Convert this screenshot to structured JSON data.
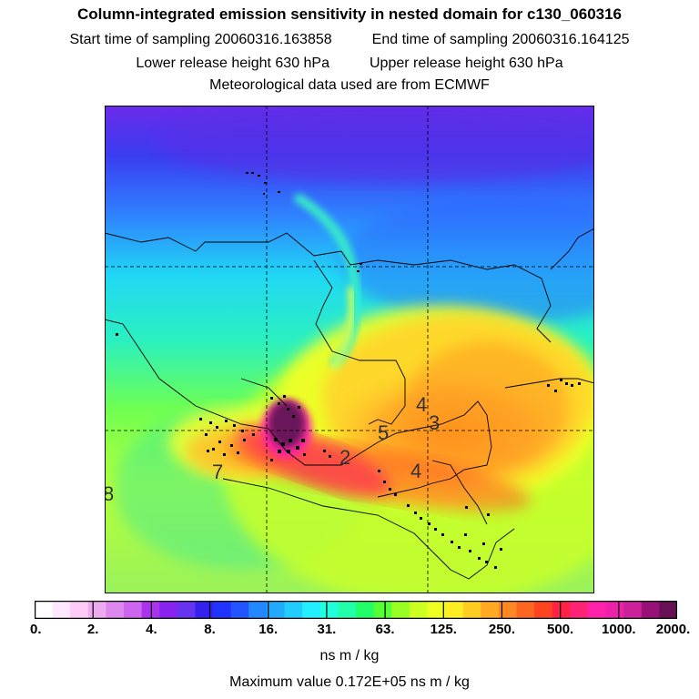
{
  "header": {
    "title": "Column-integrated emission sensitivity in nested domain for c130_060316",
    "start_label": "Start time of sampling 20060316.163858",
    "end_label": "End time of sampling 20060316.164125",
    "lower_label": "Lower release height  630 hPa",
    "upper_label": "Upper release height  630 hPa",
    "met_label": "Meteorological data used are from ECMWF"
  },
  "map": {
    "region": "Mexico, Central America, Gulf of Mexico, Cuba",
    "contour_labels": [
      "4",
      "5",
      "4",
      "3",
      "2",
      "7",
      "8"
    ]
  },
  "colorbar": {
    "ticks": [
      "0.",
      "2.",
      "4.",
      "8.",
      "16.",
      "31.",
      "63.",
      "125.",
      "250.",
      "500.",
      "1000.",
      "2000."
    ],
    "colors": [
      "#ffffff",
      "#ffe8ff",
      "#ffcaf5",
      "#eeaaee",
      "#dd88ee",
      "#cc66ee",
      "#aa33ee",
      "#8822ee",
      "#6633ee",
      "#3322ee",
      "#2233ff",
      "#2255ff",
      "#2288ff",
      "#22aaff",
      "#22ccff",
      "#22eeff",
      "#22ffdd",
      "#22ffaa",
      "#22ff66",
      "#55ff33",
      "#99ff22",
      "#ccff22",
      "#eeff22",
      "#ffee22",
      "#ffcc22",
      "#ffaa22",
      "#ff8822",
      "#ff6622",
      "#ff4422",
      "#ff2244",
      "#ff2277",
      "#ff22aa",
      "#ee22aa",
      "#cc2299",
      "#991177",
      "#661155"
    ],
    "units": "ns m / kg"
  },
  "footer": {
    "max_label": "Maximum value  0.172E+05 ns m / kg"
  }
}
